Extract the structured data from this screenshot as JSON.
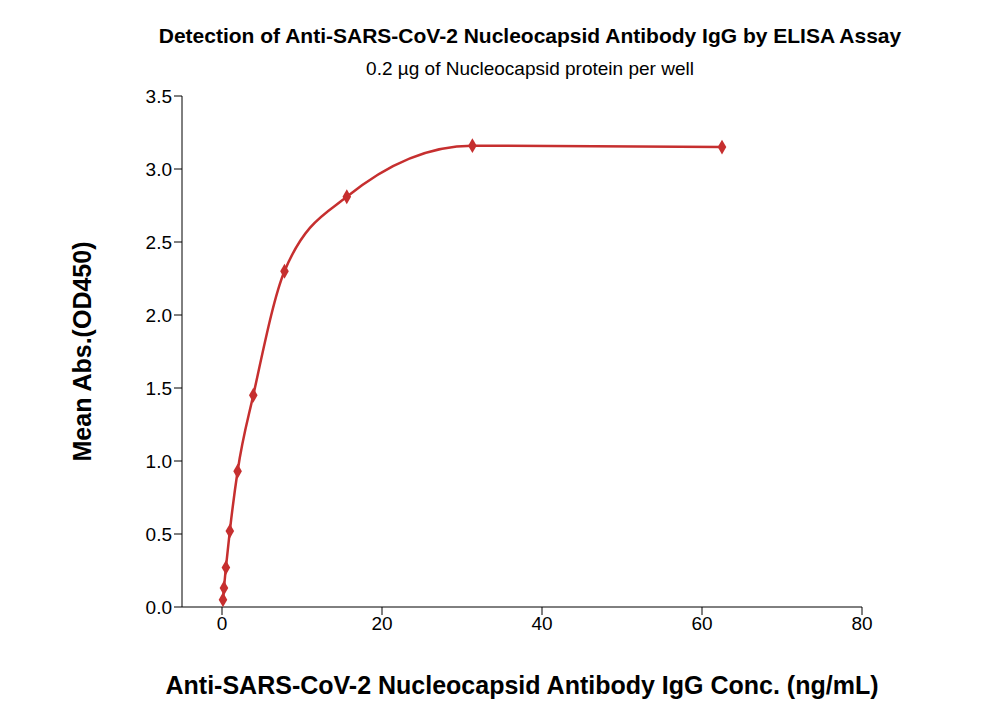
{
  "chart_data": {
    "type": "scatter",
    "title": "Detection of Anti-SARS-CoV-2 Nucleocapsid Antibody IgG by ELISA Assay",
    "subtitle": "0.2 µg of Nucleocapsid protein  per well",
    "x_label": "Anti-SARS-CoV-2 Nucleocapsid Antibody IgG Conc. (ng/mL)",
    "y_label": "Mean Abs.(OD450)",
    "x": [
      0.122,
      0.244,
      0.488,
      0.977,
      1.95,
      3.91,
      7.81,
      15.6,
      31.3,
      62.5
    ],
    "values": [
      0.05,
      0.13,
      0.27,
      0.52,
      0.93,
      1.45,
      2.3,
      2.81,
      3.16,
      3.15
    ],
    "color": "#c62f2f",
    "marker": "diamond",
    "line_style": "solid",
    "xlim": [
      -5,
      80
    ],
    "xticks": [
      0,
      20,
      40,
      60,
      80
    ],
    "ylim": [
      0,
      3.5
    ],
    "yticks": [
      {
        "value": 0,
        "label": "0.0"
      },
      0.5,
      {
        "value": 1,
        "label": "1.0"
      },
      1.5,
      {
        "value": 2,
        "label": "2.0"
      },
      2.5,
      {
        "value": 3,
        "label": "3.0"
      },
      3.5
    ],
    "grid": false
  }
}
